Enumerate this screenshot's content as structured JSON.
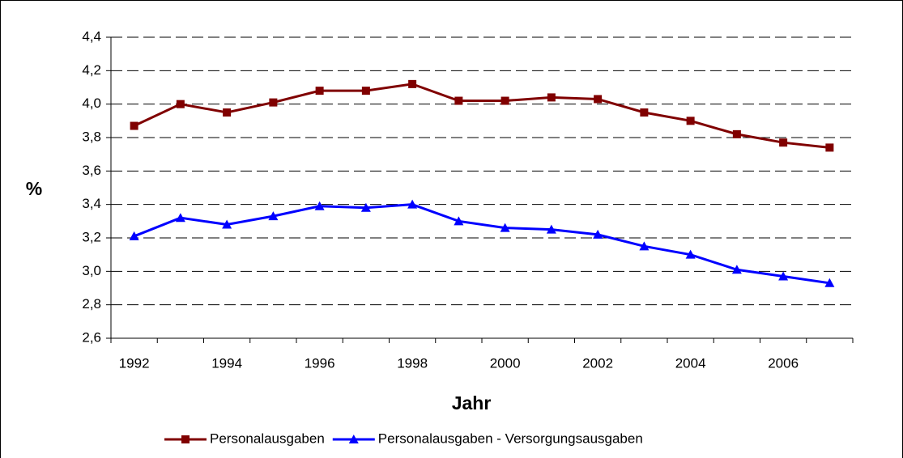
{
  "chart_data": {
    "type": "line",
    "ylabel": "%",
    "xlabel": "Jahr",
    "categories": [
      "1992",
      null,
      "1994",
      null,
      "1996",
      null,
      "1998",
      null,
      "2000",
      null,
      "2002",
      null,
      "2004",
      null,
      "2006",
      null
    ],
    "series": [
      {
        "name": "Personalausgaben",
        "color": "#800000",
        "marker": "square",
        "values": [
          3.87,
          4.0,
          3.95,
          4.01,
          4.08,
          4.08,
          4.12,
          4.02,
          4.02,
          4.04,
          4.03,
          3.95,
          3.9,
          3.82,
          3.77,
          3.74
        ]
      },
      {
        "name": "Personalausgaben - Versorgungsausgaben",
        "color": "#0000ff",
        "marker": "triangle",
        "values": [
          3.21,
          3.32,
          3.28,
          3.33,
          3.39,
          3.38,
          3.4,
          3.3,
          3.26,
          3.25,
          3.22,
          3.15,
          3.1,
          3.01,
          2.97,
          2.93
        ]
      }
    ],
    "ylim": [
      2.6,
      4.4
    ],
    "yticks": [
      {
        "value": 2.6,
        "label": "2,6"
      },
      {
        "value": 2.8,
        "label": "2,8"
      },
      {
        "value": 3.0,
        "label": "3,0"
      },
      {
        "value": 3.2,
        "label": "3,2"
      },
      {
        "value": 3.4,
        "label": "3,4"
      },
      {
        "value": 3.6,
        "label": "3,6"
      },
      {
        "value": 3.8,
        "label": "3,8"
      },
      {
        "value": 4.0,
        "label": "4,0"
      },
      {
        "value": 4.2,
        "label": "4,2"
      },
      {
        "value": 4.4,
        "label": "4,4"
      }
    ],
    "grid": true,
    "legend": "bottom"
  }
}
